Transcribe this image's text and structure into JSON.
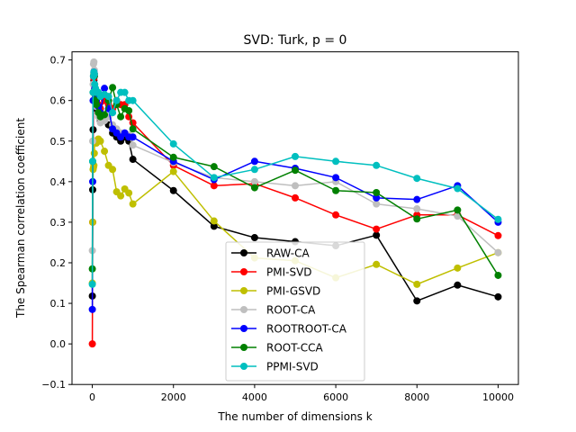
{
  "chart_data": {
    "type": "line",
    "title": "SVD: Turk, p = 0",
    "xlabel": "The number of dimensions k",
    "ylabel": "The Spearman correlation coefficient",
    "xlim": [
      -500,
      10500
    ],
    "ylim": [
      -0.1,
      0.72
    ],
    "xticks": [
      0,
      2000,
      4000,
      6000,
      8000,
      10000
    ],
    "xtick_labels": [
      "0",
      "2000",
      "4000",
      "6000",
      "8000",
      "10000"
    ],
    "yticks": [
      -0.1,
      0.0,
      0.1,
      0.2,
      0.3,
      0.4,
      0.5,
      0.6,
      0.7
    ],
    "ytick_labels": [
      "−0.1",
      "0.0",
      "0.1",
      "0.2",
      "0.3",
      "0.4",
      "0.5",
      "0.6",
      "0.7"
    ],
    "legend_position": "lower-center",
    "series": [
      {
        "name": "RAW-CA",
        "color": "#000000",
        "x": [
          1,
          10,
          20,
          30,
          40,
          50,
          60,
          80,
          100,
          150,
          200,
          300,
          400,
          500,
          600,
          700,
          800,
          900,
          1000,
          2000,
          3000,
          4000,
          5000,
          6000,
          7000,
          8000,
          9000,
          10000
        ],
        "y": [
          0.118,
          0.38,
          0.528,
          0.6,
          0.65,
          0.665,
          0.62,
          0.6,
          0.58,
          0.57,
          0.55,
          0.555,
          0.54,
          0.52,
          0.51,
          0.5,
          0.51,
          0.5,
          0.455,
          0.378,
          0.29,
          0.262,
          0.252,
          0.242,
          0.268,
          0.106,
          0.145,
          0.116
        ]
      },
      {
        "name": "PMI-SVD",
        "color": "#ff0000",
        "x": [
          1,
          10,
          20,
          30,
          40,
          50,
          60,
          80,
          100,
          150,
          200,
          300,
          400,
          500,
          600,
          700,
          800,
          900,
          1000,
          2000,
          3000,
          4000,
          5000,
          6000,
          7000,
          8000,
          9000,
          10000
        ],
        "y": [
          0.0,
          0.3,
          0.5,
          0.62,
          0.655,
          0.66,
          0.63,
          0.61,
          0.6,
          0.59,
          0.58,
          0.6,
          0.59,
          0.58,
          0.6,
          0.59,
          0.59,
          0.56,
          0.545,
          0.44,
          0.39,
          0.395,
          0.36,
          0.318,
          0.283,
          0.318,
          0.318,
          0.267
        ]
      },
      {
        "name": "PMI-GSVD",
        "color": "#bfbf00",
        "x": [
          1,
          10,
          20,
          30,
          40,
          50,
          60,
          80,
          100,
          150,
          200,
          300,
          400,
          500,
          600,
          700,
          800,
          900,
          1000,
          2000,
          3000,
          4000,
          5000,
          6000,
          7000,
          8000,
          9000,
          10000
        ],
        "y": [
          0.15,
          0.3,
          0.43,
          0.435,
          0.44,
          0.47,
          0.5,
          0.5,
          0.495,
          0.505,
          0.5,
          0.475,
          0.44,
          0.43,
          0.375,
          0.365,
          0.382,
          0.372,
          0.345,
          0.425,
          0.303,
          0.212,
          0.205,
          0.163,
          0.196,
          0.147,
          0.187,
          0.225
        ]
      },
      {
        "name": "ROOT-CA",
        "color": "#bfbfbf",
        "x": [
          1,
          10,
          20,
          30,
          40,
          50,
          60,
          80,
          100,
          150,
          200,
          300,
          400,
          500,
          600,
          700,
          800,
          900,
          1000,
          2000,
          3000,
          4000,
          5000,
          6000,
          7000,
          8000,
          9000,
          10000
        ],
        "y": [
          0.23,
          0.5,
          0.64,
          0.69,
          0.695,
          0.675,
          0.62,
          0.6,
          0.585,
          0.56,
          0.545,
          0.55,
          0.56,
          0.54,
          0.53,
          0.52,
          0.52,
          0.515,
          0.49,
          0.447,
          0.41,
          0.4,
          0.39,
          0.4,
          0.345,
          0.333,
          0.315,
          0.225
        ]
      },
      {
        "name": "ROOTROOT-CA",
        "color": "#0000ff",
        "x": [
          1,
          10,
          20,
          30,
          40,
          50,
          60,
          80,
          100,
          150,
          200,
          300,
          400,
          500,
          600,
          700,
          800,
          900,
          1000,
          2000,
          3000,
          4000,
          5000,
          6000,
          7000,
          8000,
          9000,
          10000
        ],
        "y": [
          0.085,
          0.4,
          0.6,
          0.66,
          0.67,
          0.66,
          0.63,
          0.61,
          0.6,
          0.585,
          0.57,
          0.63,
          0.58,
          0.53,
          0.52,
          0.51,
          0.52,
          0.51,
          0.51,
          0.45,
          0.405,
          0.45,
          0.433,
          0.41,
          0.36,
          0.356,
          0.39,
          0.3
        ]
      },
      {
        "name": "ROOT-CCA",
        "color": "#008000",
        "x": [
          1,
          10,
          20,
          30,
          40,
          50,
          60,
          80,
          100,
          150,
          200,
          300,
          400,
          500,
          600,
          700,
          800,
          900,
          1000,
          2000,
          3000,
          4000,
          5000,
          6000,
          7000,
          8000,
          9000,
          10000
        ],
        "y": [
          0.185,
          0.45,
          0.62,
          0.66,
          0.665,
          0.66,
          0.62,
          0.6,
          0.59,
          0.57,
          0.56,
          0.565,
          0.6,
          0.632,
          0.59,
          0.56,
          0.58,
          0.575,
          0.53,
          0.46,
          0.437,
          0.385,
          0.428,
          0.378,
          0.373,
          0.308,
          0.33,
          0.169
        ]
      },
      {
        "name": "PPMI-SVD",
        "color": "#00bfbf",
        "x": [
          1,
          10,
          20,
          30,
          40,
          50,
          60,
          80,
          100,
          150,
          200,
          300,
          400,
          500,
          600,
          700,
          800,
          900,
          1000,
          2000,
          3000,
          4000,
          5000,
          6000,
          7000,
          8000,
          9000,
          10000
        ],
        "y": [
          0.147,
          0.45,
          0.62,
          0.66,
          0.67,
          0.665,
          0.64,
          0.63,
          0.62,
          0.62,
          0.61,
          0.615,
          0.61,
          0.57,
          0.6,
          0.62,
          0.62,
          0.6,
          0.6,
          0.493,
          0.41,
          0.43,
          0.462,
          0.45,
          0.44,
          0.408,
          0.383,
          0.307
        ]
      }
    ]
  }
}
